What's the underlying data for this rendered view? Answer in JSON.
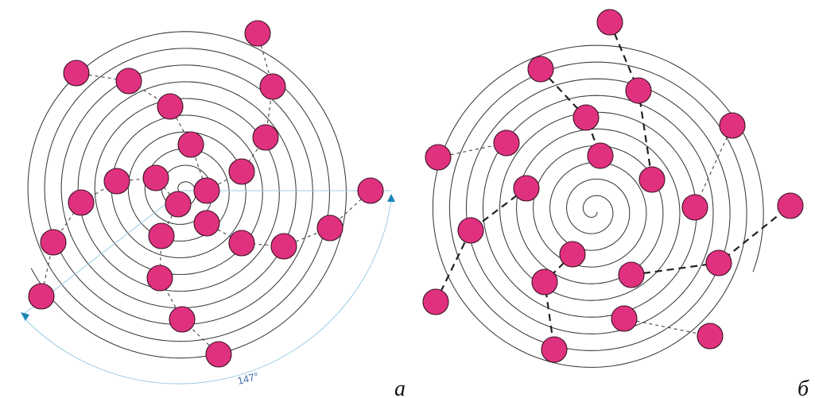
{
  "figure": {
    "panels": [
      {
        "id": "a",
        "label": "а",
        "angle_label": "147°"
      },
      {
        "id": "b",
        "label": "б"
      }
    ],
    "colors": {
      "dot_fill": "#e0317f",
      "dot_stroke": "#3a1426",
      "spiral_stroke": "#3a3a3a",
      "guide": "#9ccbe3",
      "arrow": "#1a86b6",
      "angle_text": "#3f6fa6"
    }
  }
}
